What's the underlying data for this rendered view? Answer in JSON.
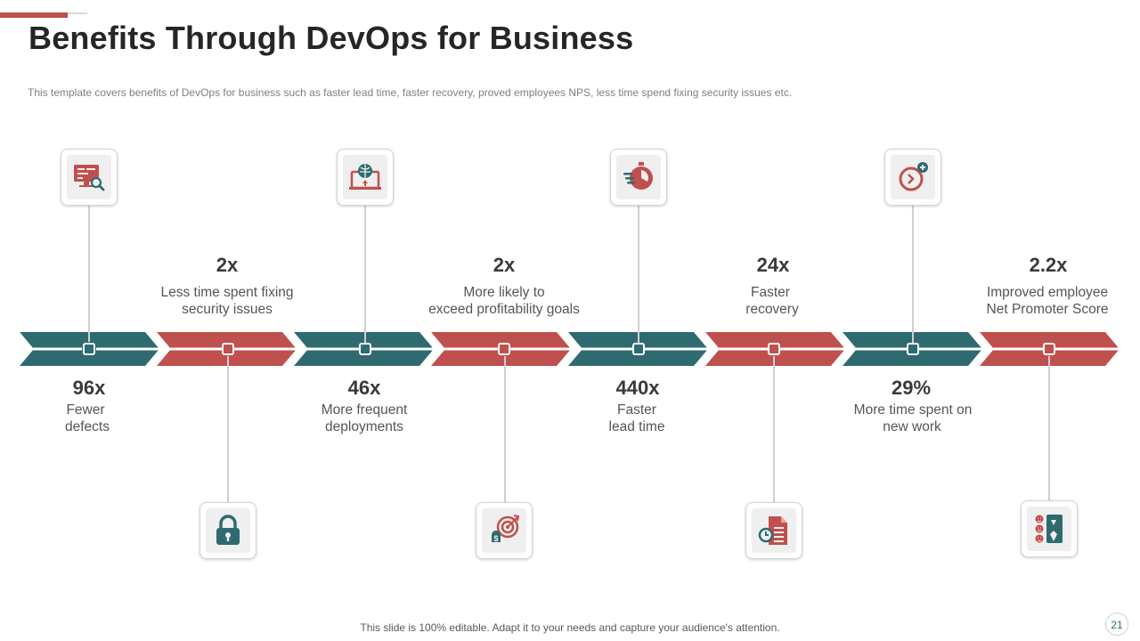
{
  "slide": {
    "title": "Benefits Through DevOps for Business",
    "subtitle": "This template covers benefits of DevOps for business such as faster lead time, faster recovery,  proved  employees NPS, less time spend fixing security issues etc.",
    "footer": "This slide is 100% editable. Adapt it to your needs and capture your audience's attention.",
    "page_number": "21"
  },
  "colors": {
    "teal": "#2e6b70",
    "red": "#c0504d",
    "connector": "#d0d0d0"
  },
  "items": [
    {
      "value": "96x",
      "label1": "Fewer",
      "label2": "defects",
      "icon": "monitor-search-icon",
      "color": "teal"
    },
    {
      "value": "2x",
      "label1": "Less time spent fixing",
      "label2": "security issues",
      "icon": "padlock-icon",
      "color": "red"
    },
    {
      "value": "46x",
      "label1": "More frequent",
      "label2": "deployments",
      "icon": "laptop-globe-icon",
      "color": "teal"
    },
    {
      "value": "2x",
      "label1": "More likely to",
      "label2": "exceed profitability goals",
      "icon": "money-target-icon",
      "color": "red"
    },
    {
      "value": "440x",
      "label1": "Faster",
      "label2": "lead time",
      "icon": "stopwatch-icon",
      "color": "teal"
    },
    {
      "value": "24x",
      "label1": "Faster",
      "label2": "recovery",
      "icon": "document-refresh-icon",
      "color": "red"
    },
    {
      "value": "29%",
      "label1": "More time spent on",
      "label2": "new work",
      "icon": "clock-plus-icon",
      "color": "teal"
    },
    {
      "value": "2.2x",
      "label1": "Improved employee",
      "label2": "Net Promoter Score",
      "icon": "feedback-rating-icon",
      "color": "red"
    }
  ]
}
